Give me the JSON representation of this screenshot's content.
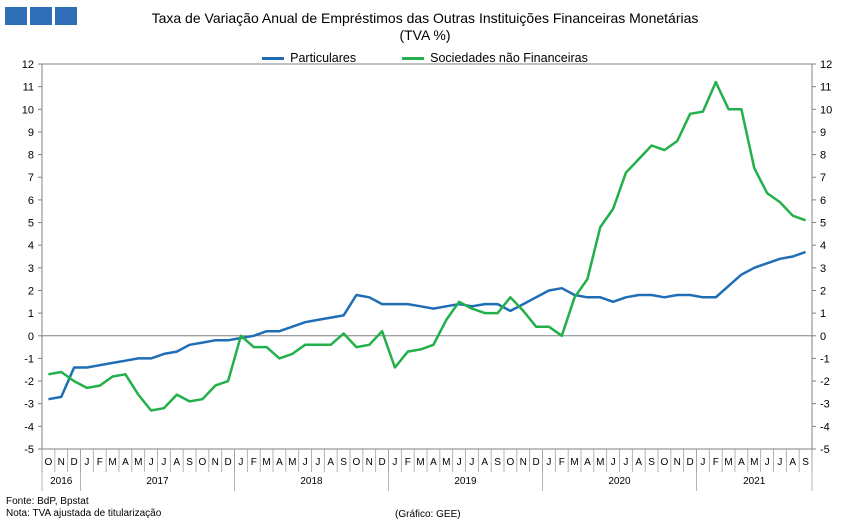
{
  "header": {
    "title": "Taxa de Variação Anual de Empréstimos das Outras Instituições Financeiras Monetárias",
    "subtitle": "(TVA %)",
    "logo_color": "#2e6fb7"
  },
  "footer": {
    "source": "Fonte: BdP, Bpstat",
    "note": "Nota: TVA ajustada de titularização",
    "credit": "(Gráfico: GEE)"
  },
  "chart_data": {
    "type": "line",
    "title": "Taxa de Variação Anual de Empréstimos das Outras Instituições Financeiras Monetárias",
    "subtitle": "(TVA %)",
    "ylim": [
      -5,
      12
    ],
    "yticks": [
      "-5",
      "-4",
      "-3",
      "-2",
      "-1",
      "0",
      "1",
      "2",
      "3",
      "4",
      "5",
      "6",
      "7",
      "8",
      "9",
      "10",
      "11",
      "12"
    ],
    "grid": false,
    "legend_position": "top-center",
    "months": [
      "O",
      "N",
      "D",
      "J",
      "F",
      "M",
      "A",
      "M",
      "J",
      "J",
      "A",
      "S",
      "O",
      "N",
      "D",
      "J",
      "F",
      "M",
      "A",
      "M",
      "J",
      "J",
      "A",
      "S",
      "O",
      "N",
      "D",
      "J",
      "F",
      "M",
      "A",
      "M",
      "J",
      "J",
      "A",
      "S",
      "O",
      "N",
      "D",
      "J",
      "F",
      "M",
      "A",
      "M",
      "J",
      "J",
      "A",
      "S",
      "O",
      "N",
      "D",
      "J",
      "F",
      "M",
      "A",
      "M",
      "J",
      "J",
      "A",
      "S"
    ],
    "years": [
      {
        "label": "2016",
        "start": 0,
        "count": 3
      },
      {
        "label": "2017",
        "start": 3,
        "count": 12
      },
      {
        "label": "2018",
        "start": 15,
        "count": 12
      },
      {
        "label": "2019",
        "start": 27,
        "count": 12
      },
      {
        "label": "2020",
        "start": 39,
        "count": 12
      },
      {
        "label": "2021",
        "start": 51,
        "count": 9
      }
    ],
    "series": [
      {
        "name": "Particulares",
        "color": "#1f6eb5",
        "values": [
          -2.8,
          -2.7,
          -1.4,
          -1.4,
          -1.3,
          -1.2,
          -1.1,
          -1.0,
          -1.0,
          -0.8,
          -0.7,
          -0.4,
          -0.3,
          -0.2,
          -0.2,
          -0.1,
          0.0,
          0.2,
          0.2,
          0.4,
          0.6,
          0.7,
          0.8,
          0.9,
          1.8,
          1.7,
          1.4,
          1.4,
          1.4,
          1.3,
          1.2,
          1.3,
          1.4,
          1.3,
          1.4,
          1.4,
          1.1,
          1.4,
          1.7,
          2.0,
          2.1,
          1.8,
          1.7,
          1.7,
          1.5,
          1.7,
          1.8,
          1.8,
          1.7,
          1.8,
          1.8,
          1.7,
          1.7,
          2.2,
          2.7,
          3.0,
          3.2,
          3.4,
          3.5,
          3.7
        ]
      },
      {
        "name": "Sociedades não Financeiras",
        "color": "#22b04b",
        "values": [
          -1.7,
          -1.6,
          -2.0,
          -2.3,
          -2.2,
          -1.8,
          -1.7,
          -2.6,
          -3.3,
          -3.2,
          -2.6,
          -2.9,
          -2.8,
          -2.2,
          -2.0,
          0.0,
          -0.5,
          -0.5,
          -1.0,
          -0.8,
          -0.4,
          -0.4,
          -0.4,
          0.1,
          -0.5,
          -0.4,
          0.2,
          -1.4,
          -0.7,
          -0.6,
          -0.4,
          0.7,
          1.5,
          1.2,
          1.0,
          1.0,
          1.7,
          1.1,
          0.4,
          0.4,
          0.0,
          1.7,
          2.5,
          4.8,
          5.6,
          7.2,
          7.8,
          8.4,
          8.2,
          8.6,
          9.8,
          9.9,
          11.2,
          10.0,
          10.0,
          7.4,
          6.3,
          5.9,
          5.3,
          5.1
        ]
      }
    ]
  }
}
